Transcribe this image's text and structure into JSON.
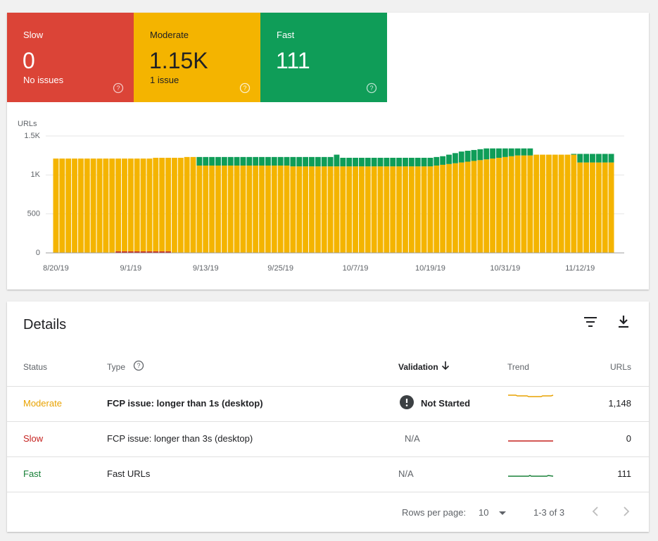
{
  "summary": {
    "tiles": [
      {
        "label": "Slow",
        "value": "0",
        "note": "No issues",
        "color": "#db4437"
      },
      {
        "label": "Moderate",
        "value": "1.15K",
        "note": "1 issue",
        "color": "#f4b400"
      },
      {
        "label": "Fast",
        "value": "111",
        "color": "#0f9d58"
      }
    ]
  },
  "chart_data": {
    "type": "bar",
    "stacked": true,
    "y_label": "URLs",
    "categories": [
      "8/20/19",
      null,
      null,
      null,
      null,
      null,
      null,
      null,
      null,
      null,
      null,
      null,
      "9/1/19",
      null,
      null,
      null,
      null,
      null,
      null,
      null,
      null,
      null,
      null,
      null,
      "9/13/19",
      null,
      null,
      null,
      null,
      null,
      null,
      null,
      null,
      null,
      null,
      null,
      "9/25/19",
      null,
      null,
      null,
      null,
      null,
      null,
      null,
      null,
      null,
      null,
      null,
      "10/7/19",
      null,
      null,
      null,
      null,
      null,
      null,
      null,
      null,
      null,
      null,
      null,
      "10/19/19",
      null,
      null,
      null,
      null,
      null,
      null,
      null,
      null,
      null,
      null,
      null,
      "10/31/19",
      null,
      null,
      null,
      null,
      null,
      null,
      null,
      null,
      null,
      null,
      null,
      "11/12/19",
      null,
      null,
      null,
      null,
      null
    ],
    "series": [
      {
        "name": "Slow",
        "color": "#c5221f",
        "values": [
          0,
          0,
          0,
          0,
          0,
          0,
          0,
          0,
          0,
          0,
          20,
          20,
          20,
          20,
          20,
          20,
          20,
          20,
          20,
          0,
          0,
          0,
          0,
          0,
          0,
          0,
          0,
          0,
          0,
          0,
          0,
          0,
          0,
          0,
          0,
          0,
          0,
          0,
          0,
          0,
          0,
          0,
          0,
          0,
          0,
          0,
          0,
          0,
          0,
          0,
          0,
          0,
          0,
          0,
          0,
          0,
          0,
          0,
          0,
          0,
          0,
          0,
          0,
          0,
          0,
          0,
          0,
          0,
          0,
          0,
          0,
          0,
          0,
          0,
          0,
          0,
          0,
          0,
          0,
          0,
          0,
          0,
          0,
          0,
          0,
          0,
          0,
          0,
          0,
          0
        ]
      },
      {
        "name": "Moderate",
        "color": "#f4b400",
        "values": [
          1210,
          1210,
          1210,
          1210,
          1210,
          1210,
          1210,
          1210,
          1210,
          1210,
          1190,
          1190,
          1190,
          1190,
          1190,
          1190,
          1200,
          1200,
          1200,
          1220,
          1220,
          1230,
          1230,
          1120,
          1120,
          1120,
          1120,
          1120,
          1120,
          1120,
          1120,
          1120,
          1120,
          1120,
          1120,
          1120,
          1120,
          1120,
          1110,
          1110,
          1110,
          1110,
          1110,
          1110,
          1110,
          1110,
          1110,
          1110,
          1110,
          1110,
          1110,
          1110,
          1110,
          1110,
          1110,
          1110,
          1110,
          1110,
          1110,
          1110,
          1110,
          1120,
          1130,
          1140,
          1150,
          1160,
          1170,
          1180,
          1190,
          1200,
          1210,
          1220,
          1230,
          1240,
          1250,
          1250,
          1250,
          1260,
          1260,
          1260,
          1260,
          1260,
          1260,
          1260,
          1160,
          1160,
          1160,
          1160,
          1160,
          1160
        ]
      },
      {
        "name": "Fast",
        "color": "#0f9d58",
        "values": [
          0,
          0,
          0,
          0,
          0,
          0,
          0,
          0,
          0,
          0,
          0,
          0,
          0,
          0,
          0,
          0,
          0,
          0,
          0,
          0,
          0,
          0,
          0,
          110,
          110,
          110,
          110,
          110,
          110,
          110,
          110,
          110,
          110,
          110,
          110,
          110,
          110,
          110,
          120,
          120,
          120,
          120,
          120,
          120,
          120,
          150,
          110,
          110,
          110,
          110,
          110,
          110,
          110,
          110,
          110,
          110,
          110,
          110,
          110,
          110,
          110,
          110,
          110,
          120,
          130,
          140,
          140,
          140,
          140,
          140,
          130,
          120,
          110,
          100,
          90,
          90,
          90,
          0,
          0,
          0,
          0,
          0,
          0,
          10,
          110,
          110,
          110,
          110,
          110,
          110
        ]
      }
    ],
    "ylim": [
      0,
      1500
    ],
    "yticks": [
      0,
      500,
      {
        "value": 1000,
        "label": "1K"
      },
      {
        "value": 1500,
        "label": "1.5K"
      }
    ],
    "grid": true
  },
  "details": {
    "title": "Details",
    "columns": [
      "Status",
      "Type",
      "Validation",
      "Trend",
      "URLs"
    ],
    "rows": [
      [
        "Moderate",
        "FCP issue: longer than 1s (desktop)",
        "Not Started",
        "1,148"
      ],
      [
        "Slow",
        "FCP issue: longer than 3s (desktop)",
        "N/A",
        "0"
      ],
      [
        "Fast",
        "Fast URLs",
        "N/A",
        "111"
      ]
    ],
    "footer": {
      "rows_label": "Rows per page:",
      "rows_value": "10",
      "range": "1-3 of 3"
    }
  }
}
